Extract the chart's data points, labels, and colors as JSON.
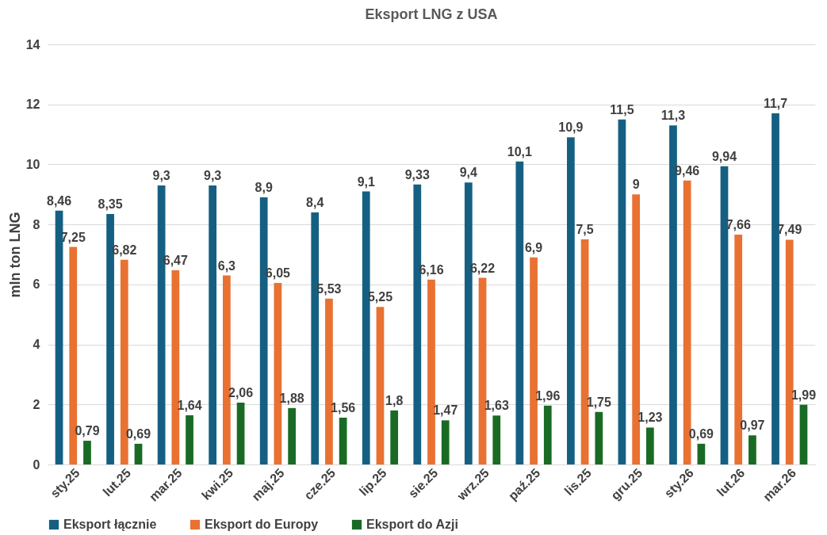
{
  "chart_data": {
    "type": "bar",
    "title": "Eksport LNG z USA",
    "ylabel": "mln ton LNG",
    "categories": [
      "sty.25",
      "lut.25",
      "mar.25",
      "kwi.25",
      "maj.25",
      "cze.25",
      "lip.25",
      "sie.25",
      "wrz.25",
      "paź.25",
      "lis.25",
      "gru.25",
      "sty.26",
      "lut.26",
      "mar.26"
    ],
    "series": [
      {
        "name": "Eksport łącznie",
        "color": "#156082",
        "values": [
          8.46,
          8.35,
          9.3,
          9.3,
          8.9,
          8.4,
          9.1,
          9.33,
          9.4,
          10.1,
          10.9,
          11.5,
          11.3,
          9.94,
          11.7
        ],
        "value_labels": [
          "8,46",
          "8,35",
          "9,3",
          "9,3",
          "8,9",
          "8,4",
          "9,1",
          "9,33",
          "9,4",
          "10,1",
          "10,9",
          "11,5",
          "11,3",
          "9,94",
          "11,7"
        ]
      },
      {
        "name": "Eksport do Europy",
        "color": "#e97132",
        "values": [
          7.25,
          6.82,
          6.47,
          6.3,
          6.05,
          5.53,
          5.25,
          6.16,
          6.22,
          6.9,
          7.5,
          9,
          9.46,
          7.66,
          7.49
        ],
        "value_labels": [
          "7,25",
          "6,82",
          "6,47",
          "6,3",
          "6,05",
          "5,53",
          "5,25",
          "6,16",
          "6,22",
          "6,9",
          "7,5",
          "9",
          "9,46",
          "7,66",
          "7,49"
        ]
      },
      {
        "name": "Eksport do Azji",
        "color": "#196b24",
        "values": [
          0.79,
          0.69,
          1.64,
          2.06,
          1.88,
          1.56,
          1.8,
          1.47,
          1.63,
          1.96,
          1.75,
          1.23,
          0.69,
          0.97,
          1.99
        ],
        "value_labels": [
          "0,79",
          "0,69",
          "1,64",
          "2,06",
          "1,88",
          "1,56",
          "1,8",
          "1,47",
          "1,63",
          "1,96",
          "1,75",
          "1,23",
          "0,69",
          "0,97",
          "1,99"
        ]
      }
    ],
    "ylim": [
      0,
      14
    ],
    "yticks": [
      0,
      2,
      4,
      6,
      8,
      10,
      12,
      14
    ],
    "grid": "y",
    "legend": "bottom"
  }
}
